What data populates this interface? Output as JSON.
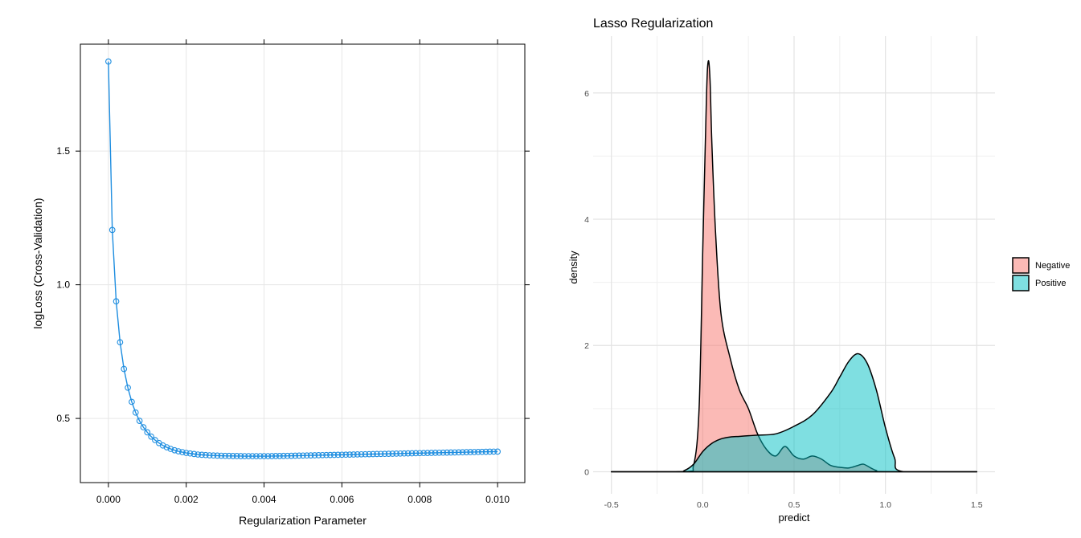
{
  "chart_data": [
    {
      "type": "line",
      "title": "",
      "xlabel": "Regularization Parameter",
      "ylabel": "logLoss (Cross-Validation)",
      "xlim": [
        -0.00072,
        0.0107
      ],
      "ylim": [
        0.26,
        1.9
      ],
      "x_ticks": [
        "0.000",
        "0.002",
        "0.004",
        "0.006",
        "0.008",
        "0.010"
      ],
      "y_ticks": [
        "0.5",
        "1.0",
        "1.5"
      ],
      "grid": true,
      "color": "#1f8ee0",
      "series": [
        {
          "x": [
            0.0,
            0.0001,
            0.0002,
            0.0003,
            0.0004,
            0.0005,
            0.0006,
            0.0007,
            0.0008,
            0.0009,
            0.001,
            0.0011,
            0.0012,
            0.0013,
            0.0014,
            0.0015,
            0.0016,
            0.0017,
            0.0018,
            0.0019,
            0.002,
            0.0021,
            0.0022,
            0.0023,
            0.0024,
            0.0025,
            0.0026,
            0.0027,
            0.0028,
            0.0029,
            0.003,
            0.0031,
            0.0032,
            0.0033,
            0.0034,
            0.0035,
            0.0036,
            0.0037,
            0.0038,
            0.0039,
            0.004,
            0.0041,
            0.0042,
            0.0043,
            0.0044,
            0.0045,
            0.0046,
            0.0047,
            0.0048,
            0.0049,
            0.005,
            0.0051,
            0.0052,
            0.0053,
            0.0054,
            0.0055,
            0.0056,
            0.0057,
            0.0058,
            0.0059,
            0.006,
            0.0061,
            0.0062,
            0.0063,
            0.0064,
            0.0065,
            0.0066,
            0.0067,
            0.0068,
            0.0069,
            0.007,
            0.0071,
            0.0072,
            0.0073,
            0.0074,
            0.0075,
            0.0076,
            0.0077,
            0.0078,
            0.0079,
            0.008,
            0.0081,
            0.0082,
            0.0083,
            0.0084,
            0.0085,
            0.0086,
            0.0087,
            0.0088,
            0.0089,
            0.009,
            0.0091,
            0.0092,
            0.0093,
            0.0094,
            0.0095,
            0.0096,
            0.0097,
            0.0098,
            0.0099,
            0.01
          ],
          "y": [
            1.835,
            1.205,
            0.938,
            0.785,
            0.685,
            0.615,
            0.562,
            0.522,
            0.491,
            0.467,
            0.448,
            0.432,
            0.419,
            0.408,
            0.399,
            0.392,
            0.386,
            0.381,
            0.377,
            0.374,
            0.371,
            0.369,
            0.367,
            0.365,
            0.364,
            0.363,
            0.362,
            0.3615,
            0.361,
            0.3605,
            0.36,
            0.3598,
            0.3596,
            0.3594,
            0.3592,
            0.359,
            0.359,
            0.359,
            0.359,
            0.359,
            0.359,
            0.359,
            0.3592,
            0.3594,
            0.3596,
            0.3598,
            0.36,
            0.3603,
            0.3606,
            0.3609,
            0.3612,
            0.3615,
            0.3618,
            0.3621,
            0.3624,
            0.3627,
            0.363,
            0.3633,
            0.3636,
            0.3639,
            0.3642,
            0.3645,
            0.3648,
            0.3651,
            0.3654,
            0.3657,
            0.366,
            0.3663,
            0.3666,
            0.3669,
            0.3672,
            0.3675,
            0.3678,
            0.3681,
            0.3684,
            0.3687,
            0.369,
            0.3693,
            0.3696,
            0.3699,
            0.3702,
            0.3705,
            0.3708,
            0.3711,
            0.3714,
            0.3717,
            0.372,
            0.3723,
            0.3726,
            0.3729,
            0.3732,
            0.3735,
            0.3738,
            0.3741,
            0.3744,
            0.3747,
            0.375,
            0.3753,
            0.3756,
            0.3759,
            0.376
          ]
        }
      ]
    },
    {
      "type": "area",
      "title": "Lasso Regularization",
      "xlabel": "predict",
      "ylabel": "density",
      "xlim": [
        -0.6,
        1.6
      ],
      "ylim": [
        -0.35,
        6.9
      ],
      "x_ticks": [
        "-0.5",
        "0.0",
        "0.5",
        "1.0",
        "1.5"
      ],
      "y_ticks": [
        "0",
        "2",
        "4",
        "6"
      ],
      "grid": true,
      "legend_position": "right",
      "series": [
        {
          "name": "Negative",
          "color": "#f8766d",
          "x": [
            -0.5,
            -0.1,
            -0.05,
            -0.02,
            0.0,
            0.02,
            0.03,
            0.04,
            0.05,
            0.07,
            0.1,
            0.15,
            0.2,
            0.25,
            0.3,
            0.35,
            0.4,
            0.45,
            0.5,
            0.55,
            0.6,
            0.65,
            0.7,
            0.75,
            0.8,
            0.85,
            0.88,
            0.92,
            0.95,
            1.0,
            1.5
          ],
          "y": [
            0,
            0,
            0.1,
            1.0,
            3.5,
            5.9,
            6.5,
            6.2,
            5.2,
            3.8,
            2.5,
            1.8,
            1.3,
            1.0,
            0.6,
            0.35,
            0.25,
            0.4,
            0.25,
            0.2,
            0.25,
            0.2,
            0.1,
            0.07,
            0.06,
            0.1,
            0.12,
            0.06,
            0.02,
            0,
            0
          ]
        },
        {
          "name": "Positive",
          "color": "#00bfc4",
          "x": [
            -0.5,
            -0.15,
            -0.1,
            -0.05,
            0.0,
            0.05,
            0.1,
            0.15,
            0.2,
            0.25,
            0.3,
            0.4,
            0.5,
            0.6,
            0.7,
            0.75,
            0.8,
            0.85,
            0.9,
            0.95,
            1.0,
            1.05,
            1.1,
            1.5
          ],
          "y": [
            0,
            0,
            0.02,
            0.12,
            0.32,
            0.45,
            0.52,
            0.55,
            0.56,
            0.57,
            0.58,
            0.6,
            0.72,
            0.9,
            1.25,
            1.5,
            1.75,
            1.87,
            1.72,
            1.3,
            0.7,
            0.22,
            0,
            0
          ]
        }
      ]
    }
  ],
  "legend": {
    "items": [
      {
        "label": "Negative",
        "color": "#f8766d"
      },
      {
        "label": "Positive",
        "color": "#00bfc4"
      }
    ]
  }
}
